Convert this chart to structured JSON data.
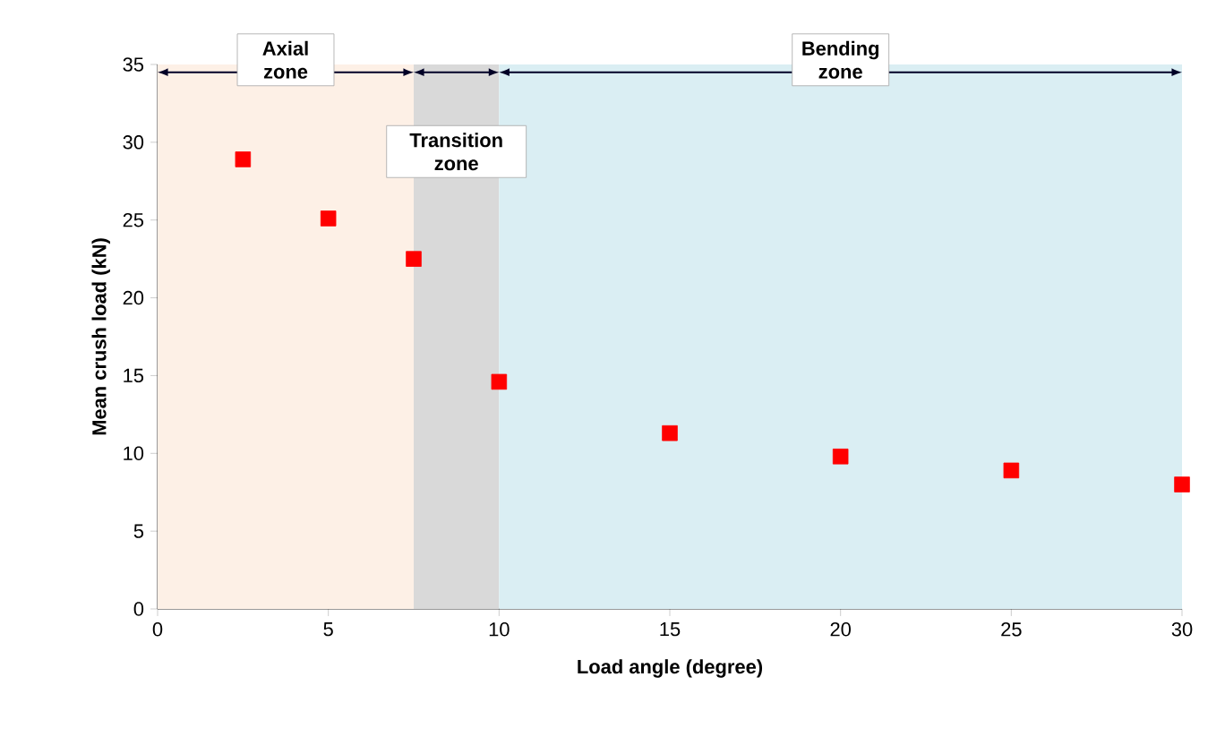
{
  "chart_data": {
    "type": "scatter",
    "xlabel": "Load angle (degree)",
    "ylabel": "Mean crush load (kN)",
    "x": [
      2.5,
      5,
      7.5,
      10,
      15,
      20,
      25,
      30
    ],
    "series": [
      {
        "color": "#ff0000",
        "values": [
          28.9,
          25.1,
          22.5,
          14.6,
          11.3,
          9.8,
          8.9,
          8.0
        ]
      }
    ],
    "marker": "square",
    "grid": false,
    "xlim": [
      0,
      30
    ],
    "ylim": [
      0,
      35
    ],
    "xticks": [
      0,
      5,
      10,
      15,
      20,
      25,
      30
    ],
    "yticks": [
      0,
      5,
      10,
      15,
      20,
      25,
      30,
      35
    ],
    "bands": [
      {
        "axis": "x",
        "from": 0,
        "to": 7.5,
        "label": "Axial zone",
        "color": "#fdf0e6"
      },
      {
        "axis": "x",
        "from": 7.5,
        "to": 10,
        "label": "Transition zone",
        "color": "#d9d9d9"
      },
      {
        "axis": "x",
        "from": 10,
        "to": 30,
        "label": "Bending zone",
        "color": "#daeef3"
      }
    ]
  }
}
